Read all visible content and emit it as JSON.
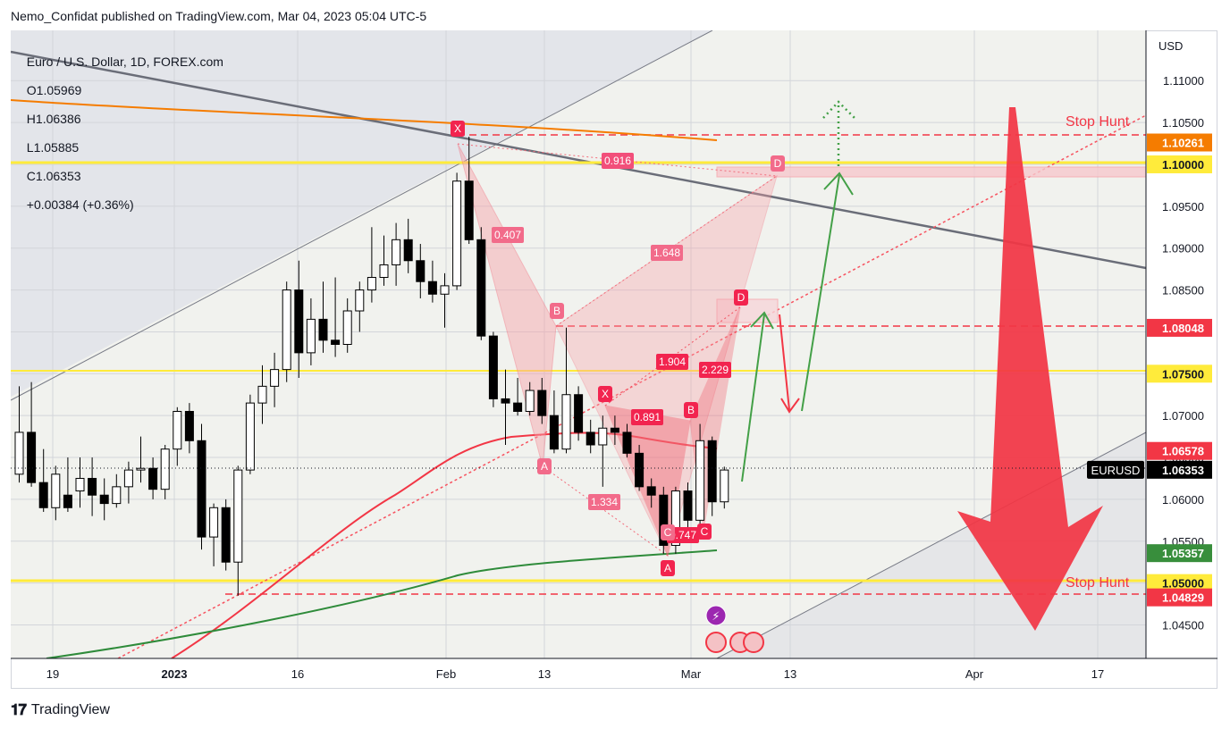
{
  "publish_line": "Nemo_Confidat published on TradingView.com, Mar 04, 2023 05:04 UTC-5",
  "footer_logo": "TradingView",
  "legend": {
    "symbol": "Euro / U.S. Dollar, 1D, FOREX.com",
    "o_label": "O",
    "o_value": "1.05969",
    "h_label": "H",
    "h_value": "1.06386",
    "l_label": "L",
    "l_value": "1.05885",
    "c_label": "C",
    "c_value": "1.06353",
    "change": "+0.00384 (+0.36%)"
  },
  "currency": "USD",
  "chart_data": {
    "type": "candlestick",
    "symbol": "EURUSD",
    "ylim": [
      1.041,
      1.116
    ],
    "y_ticks": [
      "1.04500",
      "1.05000",
      "1.05500",
      "1.06000",
      "1.06500",
      "1.07000",
      "1.07500",
      "1.08000",
      "1.08500",
      "1.09000",
      "1.09500",
      "1.10000",
      "1.10500",
      "1.11000"
    ],
    "x_ticks": [
      "19",
      "2023",
      "16",
      "Feb",
      "13",
      "Mar",
      "13",
      "Apr",
      "17"
    ],
    "price_labels": [
      {
        "text": "1.10261",
        "value": 1.10261,
        "color": "#f57c00"
      },
      {
        "text": "1.10000",
        "value": 1.1,
        "color": "#ffeb3b"
      },
      {
        "text": "1.08048",
        "value": 1.08048,
        "color": "#f23645"
      },
      {
        "text": "1.07500",
        "value": 1.075,
        "color": "#ffeb3b"
      },
      {
        "text": "1.06578",
        "value": 1.06578,
        "color": "#f23645"
      },
      {
        "text": "1.06353",
        "value": 1.06353,
        "color": "#000000"
      },
      {
        "text": "1.05357",
        "value": 1.05357,
        "color": "#388e3c"
      },
      {
        "text": "1.05000",
        "value": 1.05,
        "color": "#ffeb3b"
      },
      {
        "text": "1.04829",
        "value": 1.04829,
        "color": "#f23645"
      }
    ],
    "symbol_tag": "EURUSD",
    "annotations": {
      "stop_hunt": "Stop Hunt",
      "ratios": [
        "0.916",
        "0.407",
        "1.648",
        "1.904",
        "2.229",
        "0.891",
        "1.334",
        "0.747"
      ],
      "points": [
        "X",
        "A",
        "B",
        "C",
        "D",
        "X",
        "A",
        "B",
        "C",
        "D"
      ]
    },
    "candles": [
      {
        "o": 1.063,
        "h": 1.0735,
        "l": 1.062,
        "c": 1.068
      },
      {
        "o": 1.068,
        "h": 1.074,
        "l": 1.0615,
        "c": 1.062
      },
      {
        "o": 1.062,
        "h": 1.066,
        "l": 1.0585,
        "c": 1.059
      },
      {
        "o": 1.059,
        "h": 1.064,
        "l": 1.0575,
        "c": 1.063
      },
      {
        "o": 1.0605,
        "h": 1.065,
        "l": 1.0585,
        "c": 1.059
      },
      {
        "o": 1.061,
        "h": 1.065,
        "l": 1.059,
        "c": 1.0625
      },
      {
        "o": 1.0625,
        "h": 1.065,
        "l": 1.058,
        "c": 1.0605
      },
      {
        "o": 1.0605,
        "h": 1.0625,
        "l": 1.0575,
        "c": 1.0595
      },
      {
        "o": 1.0595,
        "h": 1.063,
        "l": 1.059,
        "c": 1.0615
      },
      {
        "o": 1.0615,
        "h": 1.0645,
        "l": 1.0595,
        "c": 1.0635
      },
      {
        "o": 1.0635,
        "h": 1.0675,
        "l": 1.062,
        "c": 1.0637
      },
      {
        "o": 1.0637,
        "h": 1.065,
        "l": 1.06,
        "c": 1.0612
      },
      {
        "o": 1.0612,
        "h": 1.0665,
        "l": 1.06,
        "c": 1.066
      },
      {
        "o": 1.066,
        "h": 1.071,
        "l": 1.064,
        "c": 1.0705
      },
      {
        "o": 1.0705,
        "h": 1.0715,
        "l": 1.0655,
        "c": 1.067
      },
      {
        "o": 1.067,
        "h": 1.069,
        "l": 1.054,
        "c": 1.0555
      },
      {
        "o": 1.0555,
        "h": 1.0595,
        "l": 1.052,
        "c": 1.059
      },
      {
        "o": 1.059,
        "h": 1.06,
        "l": 1.0515,
        "c": 1.0525
      },
      {
        "o": 1.0525,
        "h": 1.064,
        "l": 1.0485,
        "c": 1.0635
      },
      {
        "o": 1.0635,
        "h": 1.0725,
        "l": 1.063,
        "c": 1.0715
      },
      {
        "o": 1.0715,
        "h": 1.076,
        "l": 1.069,
        "c": 1.0735
      },
      {
        "o": 1.0735,
        "h": 1.0775,
        "l": 1.071,
        "c": 1.0755
      },
      {
        "o": 1.0755,
        "h": 1.086,
        "l": 1.074,
        "c": 1.085
      },
      {
        "o": 1.085,
        "h": 1.0885,
        "l": 1.0745,
        "c": 1.0775
      },
      {
        "o": 1.0775,
        "h": 1.084,
        "l": 1.076,
        "c": 1.0815
      },
      {
        "o": 1.0815,
        "h": 1.086,
        "l": 1.0775,
        "c": 1.079
      },
      {
        "o": 1.079,
        "h": 1.0865,
        "l": 1.077,
        "c": 1.0785
      },
      {
        "o": 1.0785,
        "h": 1.084,
        "l": 1.0775,
        "c": 1.0825
      },
      {
        "o": 1.0825,
        "h": 1.086,
        "l": 1.08,
        "c": 1.085
      },
      {
        "o": 1.085,
        "h": 1.0925,
        "l": 1.0835,
        "c": 1.0865
      },
      {
        "o": 1.0865,
        "h": 1.0915,
        "l": 1.0855,
        "c": 1.088
      },
      {
        "o": 1.088,
        "h": 1.093,
        "l": 1.0855,
        "c": 1.091
      },
      {
        "o": 1.091,
        "h": 1.0935,
        "l": 1.087,
        "c": 1.0885
      },
      {
        "o": 1.0885,
        "h": 1.0905,
        "l": 1.084,
        "c": 1.086
      },
      {
        "o": 1.086,
        "h": 1.0885,
        "l": 1.0835,
        "c": 1.0845
      },
      {
        "o": 1.0845,
        "h": 1.087,
        "l": 1.0805,
        "c": 1.0855
      },
      {
        "o": 1.0855,
        "h": 1.099,
        "l": 1.085,
        "c": 1.098
      },
      {
        "o": 1.098,
        "h": 1.1033,
        "l": 1.0905,
        "c": 1.091
      },
      {
        "o": 1.091,
        "h": 1.0925,
        "l": 1.079,
        "c": 1.0795
      },
      {
        "o": 1.0795,
        "h": 1.08,
        "l": 1.071,
        "c": 1.072
      },
      {
        "o": 1.072,
        "h": 1.0755,
        "l": 1.0665,
        "c": 1.0715
      },
      {
        "o": 1.0715,
        "h": 1.0745,
        "l": 1.07,
        "c": 1.0705
      },
      {
        "o": 1.0705,
        "h": 1.074,
        "l": 1.07,
        "c": 1.073
      },
      {
        "o": 1.073,
        "h": 1.0745,
        "l": 1.069,
        "c": 1.07
      },
      {
        "o": 1.07,
        "h": 1.073,
        "l": 1.0655,
        "c": 1.066
      },
      {
        "o": 1.066,
        "h": 1.0805,
        "l": 1.0655,
        "c": 1.0725
      },
      {
        "o": 1.0725,
        "h": 1.0735,
        "l": 1.067,
        "c": 1.068
      },
      {
        "o": 1.068,
        "h": 1.0695,
        "l": 1.0655,
        "c": 1.0665
      },
      {
        "o": 1.0665,
        "h": 1.07,
        "l": 1.0615,
        "c": 1.0685
      },
      {
        "o": 1.0685,
        "h": 1.07,
        "l": 1.0665,
        "c": 1.068
      },
      {
        "o": 1.068,
        "h": 1.069,
        "l": 1.065,
        "c": 1.0655
      },
      {
        "o": 1.0655,
        "h": 1.0665,
        "l": 1.061,
        "c": 1.0615
      },
      {
        "o": 1.0615,
        "h": 1.0625,
        "l": 1.059,
        "c": 1.0605
      },
      {
        "o": 1.0605,
        "h": 1.0615,
        "l": 1.0535,
        "c": 1.0545
      },
      {
        "o": 1.0545,
        "h": 1.0615,
        "l": 1.0535,
        "c": 1.061
      },
      {
        "o": 1.061,
        "h": 1.062,
        "l": 1.0555,
        "c": 1.0575
      },
      {
        "o": 1.0575,
        "h": 1.069,
        "l": 1.056,
        "c": 1.067
      },
      {
        "o": 1.067,
        "h": 1.0675,
        "l": 1.058,
        "c": 1.0597
      },
      {
        "o": 1.0597,
        "h": 1.0639,
        "l": 1.0589,
        "c": 1.0635
      }
    ]
  }
}
